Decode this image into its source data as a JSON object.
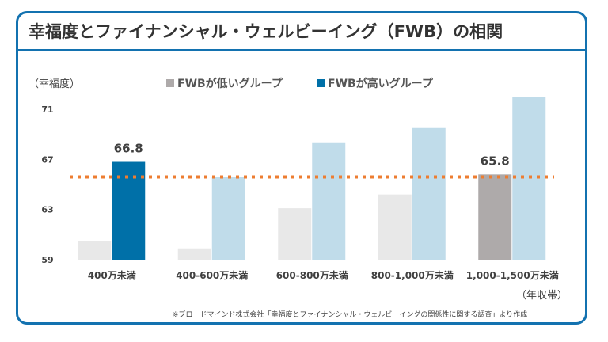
{
  "chart_data": {
    "type": "bar",
    "title": "幸福度とファイナンシャル・ウェルビーイング（FWB）の相関",
    "ylabel": "（幸福度）",
    "xlabel": "（年収帯）",
    "ylim": [
      59,
      72
    ],
    "yticks": [
      "59",
      "63",
      "67",
      "71"
    ],
    "categories": [
      "400万未満",
      "400-600万未満",
      "600-800万未満",
      "800-1,000万未満",
      "1,000-1,500万未満"
    ],
    "series": [
      {
        "name": "FWBが低いグループ",
        "values": [
          60.5,
          59.9,
          63.1,
          64.2,
          65.8
        ],
        "color": "#e8e8e8",
        "highlight_color": "#aeaaaa"
      },
      {
        "name": "FWBが高いグループ",
        "values": [
          66.8,
          65.6,
          68.3,
          69.5,
          72.0
        ],
        "color": "#c0dcea",
        "highlight_color": "#0070a8"
      }
    ],
    "highlights": [
      {
        "series": 1,
        "category": 0,
        "label": "66.8"
      },
      {
        "series": 0,
        "category": 4,
        "label": "65.8"
      }
    ],
    "reference_line": {
      "value": 65.6,
      "color": "#ed7d31",
      "style": "dotted"
    },
    "grid": false,
    "legend_position": "top"
  },
  "frame_color": "#1372b0",
  "source": "※ブロードマインド株式会社「幸福度とファイナンシャル・ウェルビーイングの関係性に関する調査」より作成"
}
